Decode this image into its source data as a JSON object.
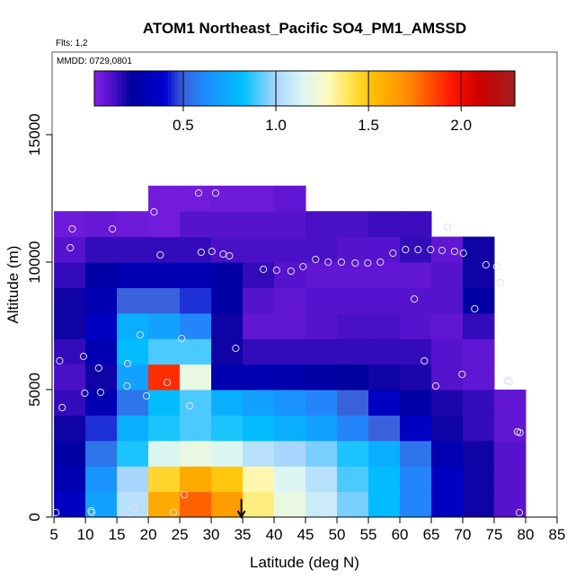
{
  "chart_data": {
    "type": "heatmap",
    "title": "ATOM1 Northeast_Pacific SO4_PM1_AMSSD",
    "subtitle": "Flts: 1,2",
    "annotation": "MMDD: 0729,0801",
    "xlabel": "Latitude (deg N)",
    "ylabel": "Altitude (m)",
    "xlim": [
      4.7,
      85
    ],
    "ylim": [
      0,
      18240
    ],
    "xticks": [
      5,
      10,
      15,
      20,
      25,
      30,
      35,
      40,
      45,
      50,
      55,
      60,
      65,
      70,
      75,
      80,
      85
    ],
    "yticks": [
      0,
      5000,
      10000,
      15000
    ],
    "colorbar": {
      "range": [
        0.02,
        2.29
      ],
      "ticks": [
        "0.5",
        "1.0",
        "1.5",
        "2.0"
      ],
      "placement": "top"
    },
    "colors": {
      "stops": [
        [
          0.02,
          "#8420e6"
        ],
        [
          0.12,
          "#4a10c8"
        ],
        [
          0.22,
          "#00009c"
        ],
        [
          0.4,
          "#0000d0"
        ],
        [
          0.5,
          "#3a62dc"
        ],
        [
          0.62,
          "#1e8cff"
        ],
        [
          0.82,
          "#00c0ff"
        ],
        [
          1.0,
          "#a8d6ff"
        ],
        [
          1.15,
          "#dcf6f4"
        ],
        [
          1.28,
          "#fffbc0"
        ],
        [
          1.42,
          "#ffe040"
        ],
        [
          1.52,
          "#ffc000"
        ],
        [
          1.72,
          "#ff8800"
        ],
        [
          1.95,
          "#ff1500"
        ],
        [
          2.1,
          "#cc0000"
        ],
        [
          2.29,
          "#a32020"
        ]
      ]
    },
    "lat_bins": [
      5,
      10,
      15,
      20,
      25,
      30,
      35,
      40,
      45,
      50,
      55,
      60,
      65,
      70,
      75,
      80
    ],
    "alt_bins": [
      0,
      1000,
      2000,
      3000,
      4000,
      5000,
      6000,
      7000,
      8000,
      9000,
      10000,
      11000,
      12000,
      13000
    ],
    "values": [
      [
        0.35,
        0.7,
        1.05,
        1.6,
        1.8,
        1.65,
        1.35,
        1.2,
        1.1,
        0.95,
        0.8,
        0.6,
        0.35,
        0.2,
        0.1
      ],
      [
        0.3,
        0.65,
        1.0,
        1.45,
        1.6,
        1.5,
        1.3,
        1.15,
        1.05,
        0.9,
        0.8,
        0.6,
        0.35,
        0.2,
        0.1
      ],
      [
        0.25,
        0.55,
        0.85,
        1.15,
        1.2,
        1.15,
        1.05,
        1.0,
        0.95,
        0.85,
        0.75,
        0.55,
        0.3,
        0.2,
        0.1
      ],
      [
        0.2,
        0.45,
        0.75,
        0.85,
        0.9,
        0.85,
        0.8,
        0.75,
        0.7,
        0.6,
        0.5,
        0.35,
        0.2,
        0.15,
        0.08
      ],
      [
        0.15,
        0.3,
        0.55,
        0.8,
        0.9,
        0.75,
        0.7,
        0.65,
        0.6,
        0.5,
        0.35,
        0.25,
        0.18,
        0.15,
        0.08
      ],
      [
        0.12,
        0.2,
        0.7,
        1.9,
        1.2,
        0.3,
        0.3,
        0.28,
        0.25,
        0.22,
        0.2,
        0.18,
        0.1,
        0.08,
        null
      ],
      [
        0.15,
        0.3,
        0.8,
        0.9,
        0.9,
        0.2,
        0.15,
        0.15,
        0.15,
        0.15,
        0.15,
        0.15,
        0.1,
        0.08,
        null
      ],
      [
        0.2,
        0.35,
        0.75,
        0.7,
        0.6,
        0.2,
        0.08,
        0.08,
        0.1,
        0.12,
        0.12,
        0.1,
        0.08,
        0.15,
        null
      ],
      [
        0.2,
        0.3,
        0.5,
        0.5,
        0.45,
        0.25,
        0.1,
        0.08,
        0.1,
        0.1,
        0.1,
        0.1,
        0.1,
        0.25,
        null
      ],
      [
        0.15,
        0.25,
        0.3,
        0.3,
        0.3,
        0.25,
        0.15,
        0.1,
        0.08,
        0.08,
        0.08,
        0.08,
        0.1,
        0.2,
        null
      ],
      [
        0.1,
        0.15,
        0.15,
        0.15,
        0.15,
        0.12,
        0.12,
        0.12,
        0.12,
        0.1,
        0.1,
        0.15,
        0.08,
        0.2,
        null
      ],
      [
        0.06,
        0.07,
        0.06,
        0.05,
        0.1,
        0.1,
        0.1,
        0.1,
        0.12,
        0.12,
        0.14,
        0.14,
        null,
        null,
        null
      ],
      [
        null,
        null,
        null,
        0.05,
        0.05,
        0.06,
        0.06,
        0.08,
        null,
        null,
        null,
        null,
        null,
        null,
        null
      ]
    ],
    "observations": [
      [
        5.3,
        176
      ],
      [
        11.0,
        176
      ],
      [
        10.9,
        246
      ],
      [
        17.1,
        176
      ],
      [
        17.7,
        387
      ],
      [
        24.0,
        176
      ],
      [
        25.7,
        880
      ],
      [
        79.0,
        176
      ],
      [
        79.1,
        3310
      ],
      [
        78.7,
        3345
      ],
      [
        77.4,
        5317
      ],
      [
        77.1,
        5352
      ],
      [
        69.9,
        5598
      ],
      [
        65.7,
        5141
      ],
      [
        63.9,
        6127
      ],
      [
        26.6,
        4366
      ],
      [
        19.7,
        4753
      ],
      [
        23.0,
        5282
      ],
      [
        12.4,
        4894
      ],
      [
        9.9,
        4859
      ],
      [
        6.3,
        4296
      ],
      [
        12.1,
        5845
      ],
      [
        5.9,
        6127
      ],
      [
        9.7,
        6303
      ],
      [
        16.7,
        6021
      ],
      [
        16.6,
        5141
      ],
      [
        25.3,
        7007
      ],
      [
        18.7,
        7148
      ],
      [
        33.9,
        6620
      ],
      [
        62.3,
        8556
      ],
      [
        71.9,
        8169
      ],
      [
        76.0,
        9190
      ],
      [
        75.4,
        9824
      ],
      [
        73.7,
        9894
      ],
      [
        7.6,
        10563
      ],
      [
        7.9,
        11303
      ],
      [
        14.3,
        11303
      ],
      [
        20.9,
        11971
      ],
      [
        21.9,
        10282
      ],
      [
        28.0,
        12711
      ],
      [
        30.7,
        12711
      ],
      [
        28.4,
        10387
      ],
      [
        30.1,
        10422
      ],
      [
        31.9,
        10317
      ],
      [
        32.9,
        10246
      ],
      [
        38.3,
        9718
      ],
      [
        40.4,
        9683
      ],
      [
        42.7,
        9648
      ],
      [
        44.6,
        9824
      ],
      [
        46.6,
        10106
      ],
      [
        48.6,
        10000
      ],
      [
        50.7,
        10000
      ],
      [
        52.9,
        9965
      ],
      [
        54.9,
        9965
      ],
      [
        56.9,
        10000
      ],
      [
        58.9,
        10352
      ],
      [
        60.9,
        10493
      ],
      [
        62.9,
        10493
      ],
      [
        64.9,
        10493
      ],
      [
        66.7,
        10458
      ],
      [
        68.7,
        10422
      ],
      [
        70.1,
        10352
      ],
      [
        67.6,
        11373
      ]
    ],
    "marker_latitude": 34.8
  }
}
